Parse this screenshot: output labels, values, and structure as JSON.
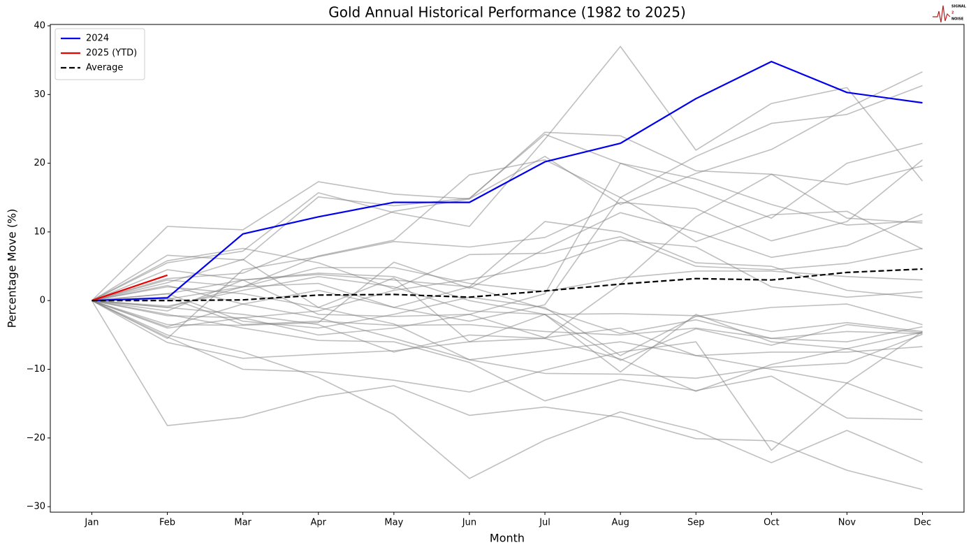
{
  "logo": [
    "SIGNAL",
    "2",
    "NOISE"
  ],
  "chart_data": {
    "type": "line",
    "title": "Gold Annual Historical Performance (1982 to 2025)",
    "xlabel": "Month",
    "ylabel": "Percentage Move (%)",
    "categories": [
      "Jan",
      "Feb",
      "Mar",
      "Apr",
      "May",
      "Jun",
      "Jul",
      "Aug",
      "Sep",
      "Oct",
      "Nov",
      "Dec"
    ],
    "ylim": [
      -30.8,
      40.2
    ],
    "yticks": [
      {
        "value": -30,
        "label": "−30"
      },
      {
        "value": -20,
        "label": "−20"
      },
      {
        "value": -10,
        "label": "−10"
      },
      0,
      10,
      20,
      30,
      40
    ],
    "grid": false,
    "legend": "upper left",
    "series": [
      {
        "color": "rgba(128,128,128,0.5)",
        "values": [
          0,
          -18.2,
          -17,
          -14,
          -12.4,
          -16.7,
          -15.5,
          -17,
          -20.1,
          -20.4,
          -24.7,
          -27.5
        ]
      },
      {
        "color": "rgba(128,128,128,0.5)",
        "values": [
          0,
          -5,
          -7.5,
          -11.2,
          -16.6,
          -25.9,
          -20.3,
          -16.2,
          -18.9,
          -23.6,
          -18.9,
          -23.6
        ]
      },
      {
        "color": "rgba(128,128,128,0.5)",
        "values": [
          0,
          10.8,
          10.3,
          17.3,
          15.5,
          14.8,
          24.5,
          24,
          18.9,
          18.4,
          12,
          11.3
        ]
      },
      {
        "color": "rgba(128,128,128,0.5)",
        "values": [
          0,
          5.5,
          7.2,
          15.7,
          12.8,
          10.8,
          23.5,
          37,
          21.9,
          28.7,
          31,
          17.4
        ]
      },
      {
        "color": "rgba(128,128,128,0.5)",
        "values": [
          0,
          -5.3,
          -10,
          -10.4,
          -11.6,
          -13.3,
          -10.1,
          -7.5,
          -6,
          -21.8,
          -12,
          -4.5
        ]
      },
      {
        "color": "rgba(128,128,128,0.5)",
        "values": [
          0,
          3.2,
          4,
          8.5,
          13,
          14.8,
          21,
          14,
          18.5,
          22,
          28,
          33.3
        ]
      },
      {
        "color": "rgba(128,128,128,0.5)",
        "values": [
          0,
          -1,
          2,
          6.5,
          8.8,
          18.3,
          20.5,
          15,
          21,
          25.8,
          27.1,
          31.3
        ]
      },
      {
        "color": "rgba(128,128,128,0.5)",
        "values": [
          0,
          6.6,
          5.9,
          15.1,
          13.8,
          14.9,
          24.2,
          20,
          17.7,
          14,
          11,
          11.6
        ]
      },
      {
        "color": "rgba(128,128,128,0.5)",
        "values": [
          0,
          -6.1,
          -8.4,
          -7.8,
          -7.3,
          -6,
          -5.5,
          -8.5,
          -13.2,
          -9.3,
          -7,
          -4.6
        ]
      },
      {
        "color": "rgba(128,128,128,0.5)",
        "values": [
          0,
          -2,
          -4,
          -5.8,
          -6,
          -9,
          -14.6,
          -11.5,
          -13.1,
          -11,
          -17.1,
          -17.3
        ]
      },
      {
        "color": "rgba(128,128,128,0.5)",
        "values": [
          0,
          2,
          1,
          -1,
          -3.4,
          -8.6,
          -10.6,
          -10.7,
          -11.3,
          -9.7,
          -9.1,
          -4.9
        ]
      },
      {
        "color": "rgba(128,128,128,0.5)",
        "values": [
          0,
          1,
          3,
          -2,
          -2.3,
          -2,
          -5.4,
          -4,
          -8,
          -10,
          -12,
          -16.1
        ]
      },
      {
        "color": "rgba(128,128,128,0.5)",
        "values": [
          0,
          4.5,
          3,
          4,
          3.5,
          0,
          -2,
          -10.4,
          -2,
          -6,
          -7,
          -9.8
        ]
      },
      {
        "color": "rgba(128,128,128,0.5)",
        "values": [
          0,
          5.8,
          7.6,
          5.5,
          1.7,
          6.7,
          6.9,
          9.3,
          5,
          4.5,
          5.4,
          7.6
        ]
      },
      {
        "color": "rgba(128,128,128,0.5)",
        "values": [
          0,
          -3.5,
          -3.6,
          -3.2,
          5.6,
          1.8,
          7.5,
          12.8,
          10,
          6.3,
          8,
          12.6
        ]
      },
      {
        "color": "rgba(128,128,128,0.5)",
        "values": [
          0,
          3,
          2,
          2.5,
          -1,
          -3,
          -0.6,
          15,
          8.6,
          12.5,
          13,
          7.5
        ]
      },
      {
        "color": "rgba(128,128,128,0.5)",
        "values": [
          0,
          -1.5,
          3,
          3.8,
          3,
          2,
          11.5,
          10,
          5.5,
          5,
          1.5,
          0.4
        ]
      },
      {
        "color": "rgba(128,128,128,0.5)",
        "values": [
          0,
          -4,
          -2.5,
          -5,
          -4,
          -2,
          1,
          20,
          16,
          12,
          20,
          22.9
        ]
      },
      {
        "color": "rgba(128,128,128,0.5)",
        "values": [
          0,
          1,
          -3,
          -4,
          -2,
          0.5,
          -1,
          -8,
          -2.3,
          -1,
          -0.5,
          -3.5
        ]
      },
      {
        "color": "rgba(128,128,128,0.5)",
        "values": [
          0,
          -2.2,
          -2.5,
          -1.5,
          1.5,
          3.1,
          5,
          8.8,
          7.8,
          2,
          0.5,
          1.3
        ]
      },
      {
        "color": "rgba(128,128,128,0.5)",
        "values": [
          0,
          2.2,
          -0.5,
          -2.5,
          -5.5,
          -8.6,
          -7.3,
          -6,
          -8,
          -7.5,
          -7.5,
          -6.7
        ]
      },
      {
        "color": "rgba(128,128,128,0.5)",
        "values": [
          0,
          -0.8,
          1.5,
          3.5,
          2,
          -1.5,
          -2,
          -1.9,
          -2.2,
          -4.5,
          -3.2,
          -4.5
        ]
      },
      {
        "color": "rgba(128,128,128,0.5)",
        "values": [
          0,
          0.5,
          -3.5,
          -3,
          -3.6,
          -3.5,
          -4.5,
          -5,
          -4,
          -5.5,
          -6,
          -3.8
        ]
      },
      {
        "color": "rgba(128,128,128,0.5)",
        "values": [
          0,
          -1,
          -2,
          -3.5,
          -7.5,
          -5,
          -5.5,
          2.4,
          12.2,
          18.4,
          16.9,
          19.6
        ]
      },
      {
        "color": "rgba(128,128,128,0.5)",
        "values": [
          0,
          -5.5,
          4.5,
          6.4,
          8.6,
          7.8,
          9.2,
          14.3,
          13.4,
          8.7,
          11.5,
          20.5
        ]
      },
      {
        "color": "rgba(128,128,128,0.5)",
        "values": [
          0,
          0.2,
          2,
          4.8,
          4.8,
          2.5,
          1.3,
          3.3,
          4.3,
          4.3,
          3.5,
          3
        ]
      },
      {
        "color": "rgba(128,128,128,0.5)",
        "values": [
          0,
          2.6,
          6,
          -1,
          3.3,
          -6,
          -2,
          -8.7,
          -4.1,
          -6.5,
          -3.5,
          -4.7
        ]
      },
      {
        "color": "rgba(128,128,128,0.5)",
        "values": [
          0,
          -3.8,
          -0.5,
          1.5,
          -1,
          2,
          -1.2,
          -4.8,
          -2.8,
          -5.5,
          -4.5,
          -4.8
        ]
      },
      {
        "name": "2024",
        "color": "#0000ee",
        "values": [
          0,
          0.4,
          9.7,
          12.2,
          14.3,
          14.3,
          20.2,
          22.9,
          29.4,
          34.8,
          30.3,
          28.8
        ]
      },
      {
        "name": "2025 (YTD)",
        "color": "#ee0000",
        "values": [
          0,
          3.7,
          null,
          null,
          null,
          null,
          null,
          null,
          null,
          null,
          null,
          null
        ]
      },
      {
        "name": "Average",
        "color": "#000000",
        "linestyle": "dashed",
        "values": [
          0,
          0,
          0.1,
          0.8,
          0.9,
          0.5,
          1.4,
          2.4,
          3.2,
          3.0,
          4.1,
          4.6
        ]
      }
    ]
  }
}
